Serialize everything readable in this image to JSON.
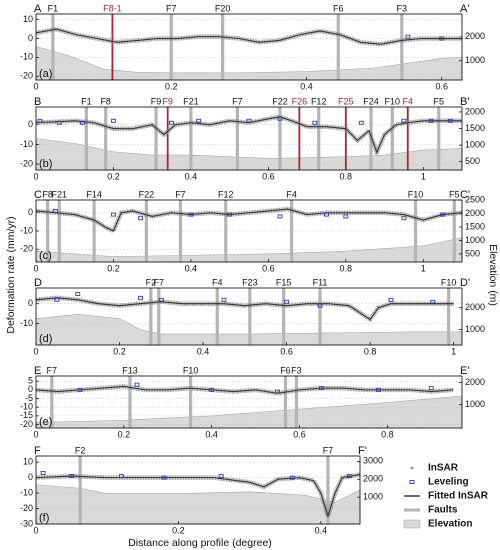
{
  "y_label": "Deformation rate (mm/yr)",
  "y2_label": "Elevation (m)",
  "x_label": "Distance along profile (degree)",
  "legend": [
    {
      "label": "InSAR",
      "color": "#8a8a8a"
    },
    {
      "label": "Leveling",
      "color": "#2b3fb0"
    },
    {
      "label": "Fitted InSAR",
      "color": "#333333"
    },
    {
      "label": "Faults",
      "color": "#b4b4b4"
    },
    {
      "label": "Elevation",
      "color": "#d9d9d9"
    }
  ],
  "chart_data": [
    {
      "type": "line",
      "start_label": "A",
      "end_label": "A'",
      "panel_label": "(a)",
      "grid": true,
      "xlim": [
        0,
        0.63
      ],
      "xticks": [
        0,
        0.2,
        0.4,
        0.6
      ],
      "ylim": [
        -22,
        13
      ],
      "yticks": [
        -20,
        -10,
        0,
        10
      ],
      "y2lim": [
        200,
        2950
      ],
      "y2ticks": [
        1000,
        2000
      ],
      "faults": [
        {
          "x": 0.025,
          "label": "F1"
        },
        {
          "x": 0.113,
          "label": "F8-1",
          "color": "#b0203a"
        },
        {
          "x": 0.2,
          "label": "F7"
        },
        {
          "x": 0.276,
          "label": "F20"
        },
        {
          "x": 0.447,
          "label": "F6"
        },
        {
          "x": 0.541,
          "label": "F3"
        }
      ],
      "fitted": {
        "x": [
          0,
          0.03,
          0.06,
          0.09,
          0.12,
          0.15,
          0.18,
          0.21,
          0.24,
          0.27,
          0.3,
          0.33,
          0.36,
          0.39,
          0.42,
          0.45,
          0.48,
          0.51,
          0.54,
          0.57,
          0.6,
          0.63
        ],
        "values": [
          3,
          5,
          2,
          0,
          -2,
          -1,
          0,
          0,
          1,
          1,
          0,
          -2,
          -1,
          2,
          4,
          2,
          -2,
          -3,
          -1,
          0,
          0,
          0
        ]
      },
      "elevation": {
        "x": [
          0,
          0.05,
          0.1,
          0.15,
          0.2,
          0.3,
          0.4,
          0.5,
          0.55,
          0.6,
          0.63
        ],
        "values": [
          1600,
          1200,
          650,
          520,
          500,
          500,
          550,
          700,
          900,
          1100,
          1150
        ]
      },
      "leveling": {
        "x": [
          0.55,
          0.6
        ],
        "values": [
          1,
          0
        ]
      }
    },
    {
      "type": "line",
      "start_label": "B",
      "end_label": "B'",
      "panel_label": "(b)",
      "grid": true,
      "xlim": [
        0,
        1.1
      ],
      "xticks": [
        0,
        0.2,
        0.4,
        0.6,
        0.8,
        1
      ],
      "ylim": [
        -23,
        9
      ],
      "yticks": [
        -20,
        -10,
        0
      ],
      "y2lim": [
        250,
        2150
      ],
      "y2ticks": [
        500,
        1000,
        1500,
        2000
      ],
      "faults": [
        {
          "x": 0.13,
          "label": "F1"
        },
        {
          "x": 0.18,
          "label": "F8"
        },
        {
          "x": 0.31,
          "label": "F9"
        },
        {
          "x": 0.34,
          "label": "F9",
          "color": "#b0203a"
        },
        {
          "x": 0.4,
          "label": "F21"
        },
        {
          "x": 0.52,
          "label": "F7"
        },
        {
          "x": 0.63,
          "label": "F22"
        },
        {
          "x": 0.68,
          "label": "F26",
          "color": "#b0203a"
        },
        {
          "x": 0.73,
          "label": "F12"
        },
        {
          "x": 0.8,
          "label": "F25",
          "color": "#b0203a"
        },
        {
          "x": 0.865,
          "label": "F24"
        },
        {
          "x": 0.92,
          "label": "F10"
        },
        {
          "x": 0.96,
          "label": "F4",
          "color": "#b0203a"
        },
        {
          "x": 1.04,
          "label": "F5"
        }
      ],
      "fitted": {
        "x": [
          0,
          0.1,
          0.15,
          0.2,
          0.25,
          0.3,
          0.33,
          0.36,
          0.4,
          0.45,
          0.5,
          0.55,
          0.6,
          0.63,
          0.66,
          0.7,
          0.75,
          0.8,
          0.83,
          0.86,
          0.88,
          0.9,
          0.93,
          0.96,
          1,
          1.05,
          1.1
        ],
        "values": [
          1,
          2,
          1,
          -2,
          -2,
          0,
          -5,
          0,
          1,
          0,
          2,
          1,
          3,
          4,
          2,
          -1,
          -1,
          -2,
          -8,
          -3,
          -14,
          -5,
          0,
          1,
          2,
          2,
          2
        ]
      },
      "elevation": {
        "x": [
          0,
          0.1,
          0.2,
          0.3,
          0.4,
          0.5,
          0.6,
          0.7,
          0.8,
          0.9,
          1,
          1.1
        ],
        "values": [
          1200,
          1050,
          800,
          700,
          700,
          650,
          600,
          620,
          650,
          700,
          850,
          900
        ]
      },
      "leveling": {
        "x": [
          0.01,
          0.06,
          0.12,
          0.2,
          0.35,
          0.42,
          0.55,
          0.63,
          0.72,
          0.84,
          0.95,
          1.02,
          1.07
        ],
        "values": [
          2,
          1,
          1,
          2,
          1,
          2,
          2,
          3,
          1,
          1,
          2,
          2,
          2
        ]
      }
    },
    {
      "type": "line",
      "start_label": "C",
      "end_label": "C'",
      "panel_label": "(c)",
      "grid": true,
      "xlim": [
        0,
        1.1
      ],
      "xticks": [
        0,
        0.2,
        0.4,
        0.6,
        0.8,
        1
      ],
      "ylim": [
        -27,
        7
      ],
      "yticks": [
        -20,
        -10,
        0
      ],
      "y2lim": [
        200,
        2500
      ],
      "y2ticks": [
        500,
        1000,
        1500,
        2000,
        2500
      ],
      "faults": [
        {
          "x": 0.03,
          "label": "F8"
        },
        {
          "x": 0.06,
          "label": "F21"
        },
        {
          "x": 0.15,
          "label": "F14"
        },
        {
          "x": 0.285,
          "label": "F22"
        },
        {
          "x": 0.373,
          "label": "F7"
        },
        {
          "x": 0.49,
          "label": "F12"
        },
        {
          "x": 0.66,
          "label": "F4"
        },
        {
          "x": 0.98,
          "label": "F10"
        },
        {
          "x": 1.08,
          "label": "F5"
        }
      ],
      "fitted": {
        "x": [
          0,
          0.05,
          0.1,
          0.15,
          0.18,
          0.2,
          0.22,
          0.25,
          0.3,
          0.35,
          0.4,
          0.45,
          0.5,
          0.55,
          0.6,
          0.65,
          0.7,
          0.75,
          0.8,
          0.85,
          0.9,
          0.95,
          1,
          1.05,
          1.1
        ],
        "values": [
          1,
          0,
          -1,
          -4,
          -8,
          -10,
          0,
          1,
          -2,
          0,
          -1,
          0,
          -1,
          0,
          1,
          2,
          -1,
          0,
          0,
          0,
          0,
          -1,
          -4,
          -1,
          0
        ]
      },
      "elevation": {
        "x": [
          0,
          0.2,
          0.4,
          0.6,
          0.8,
          0.9,
          1,
          1.1
        ],
        "values": [
          600,
          400,
          450,
          500,
          600,
          700,
          800,
          1100
        ]
      },
      "leveling": {
        "x": [
          0.05,
          0.2,
          0.27,
          0.4,
          0.5,
          0.63,
          0.75,
          0.8,
          0.95,
          1.05
        ],
        "values": [
          1,
          -1,
          -3,
          -1,
          -1,
          -2,
          -1,
          -2,
          -3,
          -1
        ]
      }
    },
    {
      "type": "line",
      "start_label": "D",
      "end_label": "D'",
      "panel_label": "(d)",
      "grid": true,
      "xlim": [
        0,
        1.02
      ],
      "xticks": [
        0,
        0.2,
        0.4,
        0.6,
        0.8,
        1
      ],
      "ylim": [
        -21,
        8
      ],
      "yticks": [
        -10,
        0
      ],
      "y2lim": [
        300,
        2900
      ],
      "y2ticks": [
        1000,
        2000
      ],
      "faults": [
        {
          "x": 0.275,
          "label": "F2"
        },
        {
          "x": 0.294,
          "label": "F7"
        },
        {
          "x": 0.434,
          "label": "F4"
        },
        {
          "x": 0.512,
          "label": "F23"
        },
        {
          "x": 0.593,
          "label": "F15"
        },
        {
          "x": 0.68,
          "label": "F11"
        },
        {
          "x": 0.988,
          "label": "F10"
        }
      ],
      "fitted": {
        "x": [
          0,
          0.05,
          0.1,
          0.15,
          0.2,
          0.25,
          0.3,
          0.35,
          0.4,
          0.45,
          0.5,
          0.55,
          0.6,
          0.65,
          0.7,
          0.75,
          0.8,
          0.82,
          0.85,
          0.9,
          0.95,
          1
        ],
        "values": [
          2,
          3,
          2,
          0,
          -1,
          0,
          1,
          0,
          0,
          0,
          -1,
          0,
          -1,
          0,
          0,
          -1,
          -8,
          -2,
          0,
          0,
          0,
          0
        ]
      },
      "elevation": {
        "x": [
          0,
          0.1,
          0.2,
          0.25,
          0.3,
          0.5,
          0.7,
          0.9,
          1.02
        ],
        "values": [
          1500,
          1700,
          1500,
          1000,
          800,
          800,
          850,
          900,
          900
        ]
      },
      "leveling": {
        "x": [
          0.05,
          0.1,
          0.25,
          0.3,
          0.45,
          0.6,
          0.68,
          0.85,
          0.95
        ],
        "values": [
          2,
          5,
          3,
          2,
          2,
          1,
          -1,
          2,
          1
        ]
      }
    },
    {
      "type": "line",
      "start_label": "E",
      "end_label": "E'",
      "panel_label": "(e)",
      "grid": true,
      "xlim": [
        0,
        0.97
      ],
      "xticks": [
        0,
        0.2,
        0.4,
        0.6,
        0.8
      ],
      "ylim": [
        -22,
        8
      ],
      "yticks": [
        -20,
        -15,
        -10,
        -5,
        0,
        5
      ],
      "y2lim": [
        -50,
        2300
      ],
      "y2ticks": [
        1000,
        2000
      ],
      "faults": [
        {
          "x": 0.036,
          "label": "F7"
        },
        {
          "x": 0.214,
          "label": "F13"
        },
        {
          "x": 0.352,
          "label": "F10"
        },
        {
          "x": 0.568,
          "label": "F6"
        },
        {
          "x": 0.593,
          "label": "F3"
        }
      ],
      "fitted": {
        "x": [
          0,
          0.05,
          0.1,
          0.15,
          0.2,
          0.25,
          0.3,
          0.35,
          0.4,
          0.45,
          0.5,
          0.55,
          0.6,
          0.65,
          0.7,
          0.75,
          0.8,
          0.85,
          0.9,
          0.95
        ],
        "values": [
          0,
          -1,
          0,
          1,
          2,
          0,
          0,
          1,
          0,
          -1,
          0,
          -2,
          0,
          1,
          1,
          0,
          0,
          0,
          -1,
          0
        ]
      },
      "elevation": {
        "x": [
          0,
          0.2,
          0.4,
          0.6,
          0.8,
          0.97
        ],
        "values": [
          200,
          300,
          500,
          800,
          1100,
          1400
        ]
      },
      "leveling": {
        "x": [
          0.1,
          0.23,
          0.4,
          0.55,
          0.65,
          0.78,
          0.9
        ],
        "values": [
          0,
          3,
          0,
          -1,
          1,
          0,
          1
        ]
      }
    },
    {
      "type": "line",
      "start_label": "F",
      "end_label": "F'",
      "panel_label": "(f)",
      "grid": true,
      "xlim": [
        0,
        0.455
      ],
      "xticks": [
        0,
        0.2,
        0.4
      ],
      "ylim": [
        -30,
        14
      ],
      "yticks": [
        -30,
        -20,
        -10,
        0,
        10
      ],
      "y2lim": [
        -500,
        3300
      ],
      "y2ticks": [
        1000,
        2000,
        3000
      ],
      "faults": [
        {
          "x": 0.062,
          "label": "F2"
        },
        {
          "x": 0.41,
          "label": "F7"
        }
      ],
      "fitted": {
        "x": [
          0,
          0.05,
          0.1,
          0.15,
          0.2,
          0.25,
          0.3,
          0.32,
          0.34,
          0.37,
          0.39,
          0.4,
          0.41,
          0.42,
          0.43,
          0.455
        ],
        "values": [
          0,
          1,
          0,
          0,
          0,
          0,
          -3,
          -6,
          -1,
          0,
          -2,
          -10,
          -25,
          -10,
          0,
          2
        ]
      },
      "elevation": {
        "x": [
          0,
          0.06,
          0.1,
          0.2,
          0.3,
          0.38,
          0.42,
          0.455
        ],
        "values": [
          1700,
          1500,
          1200,
          1200,
          1300,
          1100,
          700,
          1400
        ]
      },
      "leveling": {
        "x": [
          0.01,
          0.05,
          0.12,
          0.18,
          0.26,
          0.36,
          0.44
        ],
        "values": [
          3,
          1,
          1,
          0,
          1,
          0,
          1
        ]
      }
    }
  ]
}
